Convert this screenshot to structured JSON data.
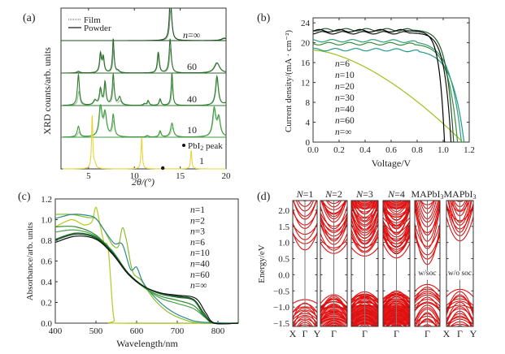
{
  "chart_data": [
    {
      "id": "a",
      "panel_label": "(a)",
      "type": "line",
      "title": "",
      "xlabel": "2θ/(°)",
      "ylabel": "XRD counts/arb. units",
      "xlim": [
        2,
        20
      ],
      "xticks": [
        5,
        10,
        15,
        20
      ],
      "legend": {
        "position": "top-left",
        "entries": [
          {
            "label": "Film",
            "style": "dotted"
          },
          {
            "label": "Powder",
            "style": "solid"
          }
        ]
      },
      "annotation": {
        "label": "PbI",
        "sub": "2",
        "suffix": " peak",
        "marker_x": 13.1
      },
      "series": [
        {
          "name": "n=∞",
          "label": "n=∞",
          "color": "#1b4d1b",
          "peaks": [
            [
              13.9,
              1.0,
              0.12
            ],
            [
              14.0,
              0.55,
              0.15
            ],
            [
              19.8,
              0.08,
              0.35
            ]
          ]
        },
        {
          "name": "60",
          "label": "60",
          "color": "#2a6b2a",
          "peaks": [
            [
              3.9,
              0.05,
              0.2
            ],
            [
              6.3,
              0.55,
              0.12
            ],
            [
              6.6,
              0.45,
              0.12
            ],
            [
              7.7,
              1.0,
              0.1
            ],
            [
              8.2,
              0.06,
              0.2
            ],
            [
              12.6,
              0.6,
              0.12
            ],
            [
              13.9,
              1.0,
              0.13
            ],
            [
              19.0,
              0.3,
              0.35
            ]
          ]
        },
        {
          "name": "40",
          "label": "40",
          "color": "#2f7f2f",
          "peaks": [
            [
              3.9,
              0.95,
              0.13
            ],
            [
              5.7,
              0.15,
              0.2
            ],
            [
              6.3,
              0.5,
              0.14
            ],
            [
              6.8,
              0.7,
              0.12
            ],
            [
              7.7,
              0.95,
              0.12
            ],
            [
              8.4,
              0.25,
              0.18
            ],
            [
              11.1,
              0.05,
              0.15
            ],
            [
              11.5,
              0.15,
              0.12
            ],
            [
              12.8,
              0.2,
              0.12
            ],
            [
              14.1,
              1.0,
              0.1
            ],
            [
              19.0,
              0.9,
              0.18
            ],
            [
              19.9,
              0.06,
              0.2
            ]
          ]
        },
        {
          "name": "10",
          "label": "10",
          "color": "#3d9a3d",
          "peaks": [
            [
              3.9,
              0.35,
              0.15
            ],
            [
              6.3,
              1.0,
              0.18
            ],
            [
              6.8,
              0.75,
              0.2
            ],
            [
              7.7,
              0.7,
              0.14
            ],
            [
              11.4,
              0.05,
              0.15
            ],
            [
              12.8,
              0.2,
              0.12
            ],
            [
              14.1,
              0.45,
              0.18
            ],
            [
              18.7,
              0.9,
              0.2
            ],
            [
              19.2,
              0.6,
              0.2
            ]
          ]
        },
        {
          "name": "1",
          "label": "1",
          "color": "#e6d43a",
          "peaks": [
            [
              5.4,
              1.0,
              0.08
            ],
            [
              5.7,
              0.08,
              0.15
            ],
            [
              10.8,
              0.6,
              0.08
            ],
            [
              16.2,
              0.35,
              0.08
            ]
          ]
        }
      ]
    },
    {
      "id": "b",
      "panel_label": "(b)",
      "type": "line",
      "title": "",
      "xlabel": "Voltage/V",
      "ylabel": "Current density/(mA · cm⁻²)",
      "xlim": [
        0,
        1.2
      ],
      "ylim": [
        0,
        25
      ],
      "xticks": [
        0.0,
        0.2,
        0.4,
        0.6,
        0.8,
        1.0,
        1.2
      ],
      "yticks": [
        0,
        4,
        8,
        12,
        16,
        20,
        24
      ],
      "legend": {
        "position": "center-left",
        "entries": [
          "n=6",
          "n=10",
          "n=20",
          "n=30",
          "n=40",
          "n=60",
          "n=∞"
        ]
      },
      "series": [
        {
          "name": "n=6",
          "color": "#9ac21a",
          "jsc": 18.5,
          "voc": 1.15,
          "shape": 0.9
        },
        {
          "name": "n=10",
          "color": "#1f9a8a",
          "jsc": 18.6,
          "voc": 1.16,
          "shape": 0.09
        },
        {
          "name": "n=20",
          "color": "#2e9c7c",
          "jsc": 20.4,
          "voc": 1.14,
          "shape": 0.085
        },
        {
          "name": "n=30",
          "color": "#3a8a3a",
          "jsc": 19.8,
          "voc": 1.11,
          "shape": 0.07
        },
        {
          "name": "n=40",
          "color": "#1f5a2a",
          "jsc": 22.6,
          "voc": 1.08,
          "shape": 0.055
        },
        {
          "name": "n=60",
          "color": "#111111",
          "jsc": 22.0,
          "voc": 1.06,
          "shape": 0.05
        },
        {
          "name": "n=∞",
          "color": "#000000",
          "jsc": 22.4,
          "voc": 1.01,
          "shape": 0.04
        }
      ]
    },
    {
      "id": "c",
      "panel_label": "(c)",
      "type": "line",
      "title": "",
      "xlabel": "Wavelength/nm",
      "ylabel": "Absorbance/arb. units",
      "xlim": [
        400,
        850
      ],
      "ylim": [
        0,
        1.2
      ],
      "xticks": [
        400,
        500,
        600,
        700,
        800
      ],
      "yticks": [
        0.0,
        0.2,
        0.4,
        0.6,
        0.8,
        1.0,
        1.2
      ],
      "legend": {
        "position": "top-right",
        "entries": [
          "n=1",
          "n=2",
          "n=3",
          "n=6",
          "n=10",
          "n=40",
          "n=60",
          "n=∞"
        ]
      },
      "series": [
        {
          "name": "n=1",
          "color": "#b5cc1e",
          "points": [
            [
              400,
              0.93
            ],
            [
              440,
              1.0
            ],
            [
              470,
              0.95
            ],
            [
              490,
              0.98
            ],
            [
              500,
              1.12
            ],
            [
              510,
              0.95
            ],
            [
              520,
              0.78
            ],
            [
              530,
              0.72
            ],
            [
              540,
              0.2
            ],
            [
              545,
              0.03
            ],
            [
              555,
              0.0
            ],
            [
              850,
              0.0
            ]
          ]
        },
        {
          "name": "n=2",
          "color": "#8cbd2a",
          "points": [
            [
              400,
              1.05
            ],
            [
              440,
              1.05
            ],
            [
              480,
              1.02
            ],
            [
              500,
              1.01
            ],
            [
              520,
              0.9
            ],
            [
              540,
              0.76
            ],
            [
              555,
              0.74
            ],
            [
              565,
              0.92
            ],
            [
              575,
              0.8
            ],
            [
              590,
              0.5
            ],
            [
              610,
              0.42
            ],
            [
              630,
              0.3
            ],
            [
              650,
              0.2
            ],
            [
              680,
              0.1
            ],
            [
              720,
              0.03
            ],
            [
              760,
              0.0
            ],
            [
              850,
              0.0
            ]
          ]
        },
        {
          "name": "n=3",
          "color": "#2a8a8a",
          "points": [
            [
              400,
              1.01
            ],
            [
              440,
              1.05
            ],
            [
              480,
              1.04
            ],
            [
              500,
              1.01
            ],
            [
              520,
              0.9
            ],
            [
              545,
              0.77
            ],
            [
              565,
              0.76
            ],
            [
              585,
              0.52
            ],
            [
              600,
              0.54
            ],
            [
              615,
              0.4
            ],
            [
              640,
              0.27
            ],
            [
              680,
              0.13
            ],
            [
              720,
              0.05
            ],
            [
              760,
              0.01
            ],
            [
              850,
              0.0
            ]
          ]
        },
        {
          "name": "n=6",
          "color": "#4aa54a",
          "points": [
            [
              400,
              0.88
            ],
            [
              450,
              0.9
            ],
            [
              500,
              0.84
            ],
            [
              540,
              0.7
            ],
            [
              580,
              0.48
            ],
            [
              620,
              0.34
            ],
            [
              660,
              0.24
            ],
            [
              700,
              0.19
            ],
            [
              740,
              0.14
            ],
            [
              770,
              0.05
            ],
            [
              790,
              0.0
            ],
            [
              850,
              0.0
            ]
          ]
        },
        {
          "name": "n=10",
          "color": "#2f8f2f",
          "points": [
            [
              400,
              0.93
            ],
            [
              450,
              0.93
            ],
            [
              500,
              0.85
            ],
            [
              540,
              0.68
            ],
            [
              580,
              0.47
            ],
            [
              620,
              0.34
            ],
            [
              660,
              0.26
            ],
            [
              700,
              0.22
            ],
            [
              740,
              0.17
            ],
            [
              770,
              0.05
            ],
            [
              790,
              0.0
            ],
            [
              850,
              0.0
            ]
          ]
        },
        {
          "name": "n=40",
          "color": "#1f6b2a",
          "points": [
            [
              400,
              0.81
            ],
            [
              450,
              0.87
            ],
            [
              500,
              0.83
            ],
            [
              540,
              0.69
            ],
            [
              580,
              0.48
            ],
            [
              620,
              0.35
            ],
            [
              660,
              0.28
            ],
            [
              700,
              0.25
            ],
            [
              740,
              0.22
            ],
            [
              765,
              0.08
            ],
            [
              790,
              0.0
            ],
            [
              850,
              0.0
            ]
          ]
        },
        {
          "name": "n=60",
          "color": "#0f4a1f",
          "points": [
            [
              400,
              0.8
            ],
            [
              450,
              0.86
            ],
            [
              500,
              0.82
            ],
            [
              540,
              0.68
            ],
            [
              580,
              0.48
            ],
            [
              620,
              0.35
            ],
            [
              660,
              0.29
            ],
            [
              700,
              0.26
            ],
            [
              740,
              0.23
            ],
            [
              765,
              0.1
            ],
            [
              790,
              0.0
            ],
            [
              850,
              0.0
            ]
          ]
        },
        {
          "name": "n=∞",
          "color": "#111111",
          "points": [
            [
              400,
              0.78
            ],
            [
              450,
              0.84
            ],
            [
              500,
              0.81
            ],
            [
              540,
              0.67
            ],
            [
              580,
              0.47
            ],
            [
              620,
              0.35
            ],
            [
              660,
              0.29
            ],
            [
              700,
              0.27
            ],
            [
              745,
              0.24
            ],
            [
              770,
              0.1
            ],
            [
              792,
              0.0
            ],
            [
              850,
              0.0
            ]
          ]
        }
      ]
    },
    {
      "id": "d",
      "panel_label": "(d)",
      "type": "line",
      "title": "",
      "xlabel": "",
      "ylabel": "Energy/eV",
      "ylim": [
        -1.6,
        2.3
      ],
      "yticks": [
        -1.5,
        -1.0,
        -0.5,
        0.0,
        0.5,
        1.0,
        1.5,
        2.0
      ],
      "line_color": "#e01010",
      "subplots": [
        {
          "title": "N=1",
          "title_italic": "N",
          "title_rest": "=1",
          "kticks": [
            "X",
            "Γ",
            "Y"
          ],
          "cbm": 0.77,
          "vbm": -0.77,
          "density": 4,
          "inset": ""
        },
        {
          "title": "N=2",
          "title_italic": "N",
          "title_rest": "=2",
          "kticks": [
            "Γ"
          ],
          "cbm": 0.66,
          "vbm": -0.62,
          "density": 9,
          "inset": ""
        },
        {
          "title": "N=3",
          "title_italic": "N",
          "title_rest": "=3",
          "kticks": [
            "Γ"
          ],
          "cbm": 0.58,
          "vbm": -0.53,
          "density": 14,
          "inset": ""
        },
        {
          "title": "N=4",
          "title_italic": "N",
          "title_rest": "=4",
          "kticks": [
            "Γ"
          ],
          "cbm": 0.52,
          "vbm": -0.5,
          "density": 18,
          "inset": ""
        },
        {
          "title": "MAPbI3",
          "title_italic": "",
          "title_rest": "MAPbI",
          "sub": "3",
          "kticks": [
            "Γ"
          ],
          "cbm": 0.32,
          "vbm": -0.3,
          "density": 6,
          "inset": "w/soc"
        },
        {
          "title": "MAPbI3",
          "title_italic": "",
          "title_rest": "MAPbI",
          "sub": "3",
          "kticks": [
            "X",
            "Γ",
            "Y"
          ],
          "cbm": 1.05,
          "vbm": -0.45,
          "density": 5,
          "inset": "w/o soc"
        }
      ]
    }
  ]
}
